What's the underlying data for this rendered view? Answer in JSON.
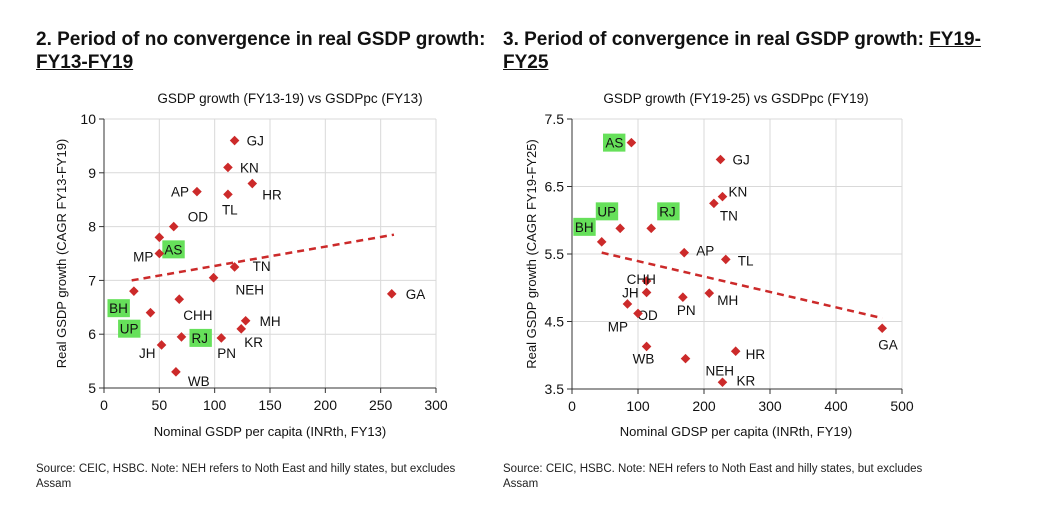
{
  "colors": {
    "marker": "#cc2a2a",
    "trend": "#cc2a2a",
    "highlight": "#66e05a",
    "grid": "#d9d9d9",
    "axis": "#333333"
  },
  "chart_data": [
    {
      "type": "scatter",
      "heading": "2. Period of no convergence in real GSDP growth:",
      "period_label": "FY13-FY19",
      "title": "GSDP growth (FY13-19) vs GSDPpc (FY13)",
      "xlabel": "Nominal GSDP per capita (INRth, FY13)",
      "ylabel": "Real GSDP growth (CAGR FY13-FY19)",
      "xlim": [
        0,
        300
      ],
      "ylim": [
        5,
        10
      ],
      "xticks": [
        "0",
        "50",
        "100",
        "150",
        "200",
        "250",
        "300"
      ],
      "yticks": [
        "5",
        "6",
        "7",
        "8",
        "9",
        "10"
      ],
      "grid": true,
      "trendline": {
        "style": "dashed",
        "x": [
          25,
          262
        ],
        "y": [
          7.0,
          7.85
        ]
      },
      "points": [
        {
          "label": "GJ",
          "x": 118,
          "y": 9.6,
          "highlight": false
        },
        {
          "label": "KN",
          "x": 112,
          "y": 9.1,
          "highlight": false
        },
        {
          "label": "AP",
          "x": 84,
          "y": 8.65,
          "highlight": false
        },
        {
          "label": "HR",
          "x": 134,
          "y": 8.8,
          "highlight": false
        },
        {
          "label": "TL",
          "x": 112,
          "y": 8.6,
          "highlight": false
        },
        {
          "label": "OD",
          "x": 63,
          "y": 8.0,
          "highlight": false
        },
        {
          "label": "AS",
          "x": 50,
          "y": 7.8,
          "highlight": true
        },
        {
          "label": "MP",
          "x": 50,
          "y": 7.5,
          "highlight": false
        },
        {
          "label": "TN",
          "x": 118,
          "y": 7.25,
          "highlight": false
        },
        {
          "label": "NEH",
          "x": 99,
          "y": 7.05,
          "highlight": false
        },
        {
          "label": "GA",
          "x": 260,
          "y": 6.75,
          "highlight": false
        },
        {
          "label": "BH",
          "x": 27,
          "y": 6.8,
          "highlight": true
        },
        {
          "label": "CHH",
          "x": 68,
          "y": 6.65,
          "highlight": false
        },
        {
          "label": "UP",
          "x": 42,
          "y": 6.4,
          "highlight": true
        },
        {
          "label": "MH",
          "x": 128,
          "y": 6.25,
          "highlight": false
        },
        {
          "label": "KR",
          "x": 124,
          "y": 6.1,
          "highlight": false
        },
        {
          "label": "RJ",
          "x": 70,
          "y": 5.95,
          "highlight": true
        },
        {
          "label": "PN",
          "x": 106,
          "y": 5.93,
          "highlight": false
        },
        {
          "label": "JH",
          "x": 52,
          "y": 5.8,
          "highlight": false
        },
        {
          "label": "WB",
          "x": 65,
          "y": 5.3,
          "highlight": false
        }
      ],
      "source": "Source: CEIC, HSBC. Note: NEH refers to Noth East and hilly states, but excludes Assam"
    },
    {
      "type": "scatter",
      "heading": "3. Period of convergence in real GSDP growth:",
      "period_label": "FY19-FY25",
      "title": "GSDP growth (FY19-25) vs GSDPpc (FY19)",
      "xlabel": "Nominal GDSP per capita (INRth, FY19)",
      "ylabel": "Real GSDP growth (CAGR FY19-FY25)",
      "xlim": [
        0,
        500
      ],
      "ylim": [
        3.5,
        7.5
      ],
      "xticks": [
        "0",
        "100",
        "200",
        "300",
        "400",
        "500"
      ],
      "yticks": [
        "3.5",
        "4.5",
        "5.5",
        "6.5",
        "7.5"
      ],
      "grid": true,
      "trendline": {
        "style": "dashed",
        "x": [
          45,
          470
        ],
        "y": [
          5.52,
          4.55
        ]
      },
      "points": [
        {
          "label": "AS",
          "x": 90,
          "y": 7.15,
          "highlight": true
        },
        {
          "label": "GJ",
          "x": 225,
          "y": 6.9,
          "highlight": false
        },
        {
          "label": "KN",
          "x": 228,
          "y": 6.35,
          "highlight": false
        },
        {
          "label": "TN",
          "x": 215,
          "y": 6.25,
          "highlight": false
        },
        {
          "label": "UP",
          "x": 73,
          "y": 5.88,
          "highlight": true
        },
        {
          "label": "RJ",
          "x": 120,
          "y": 5.88,
          "highlight": true
        },
        {
          "label": "BH",
          "x": 45,
          "y": 5.68,
          "highlight": true
        },
        {
          "label": "AP",
          "x": 170,
          "y": 5.52,
          "highlight": false
        },
        {
          "label": "TL",
          "x": 233,
          "y": 5.42,
          "highlight": false
        },
        {
          "label": "CHH",
          "x": 113,
          "y": 5.1,
          "highlight": false
        },
        {
          "label": "MH",
          "x": 208,
          "y": 4.92,
          "highlight": false
        },
        {
          "label": "JH",
          "x": 113,
          "y": 4.93,
          "highlight": false
        },
        {
          "label": "OD",
          "x": 84,
          "y": 4.76,
          "highlight": false
        },
        {
          "label": "PN",
          "x": 168,
          "y": 4.86,
          "highlight": false
        },
        {
          "label": "MP",
          "x": 100,
          "y": 4.62,
          "highlight": false
        },
        {
          "label": "WB",
          "x": 113,
          "y": 4.13,
          "highlight": false
        },
        {
          "label": "NEH",
          "x": 172,
          "y": 3.95,
          "highlight": false
        },
        {
          "label": "HR",
          "x": 248,
          "y": 4.06,
          "highlight": false
        },
        {
          "label": "KR",
          "x": 228,
          "y": 3.6,
          "highlight": false
        },
        {
          "label": "GA",
          "x": 470,
          "y": 4.4,
          "highlight": false
        }
      ],
      "source": "Source: CEIC, HSBC. Note: NEH refers to Noth East and hilly states, but excludes Assam"
    }
  ]
}
